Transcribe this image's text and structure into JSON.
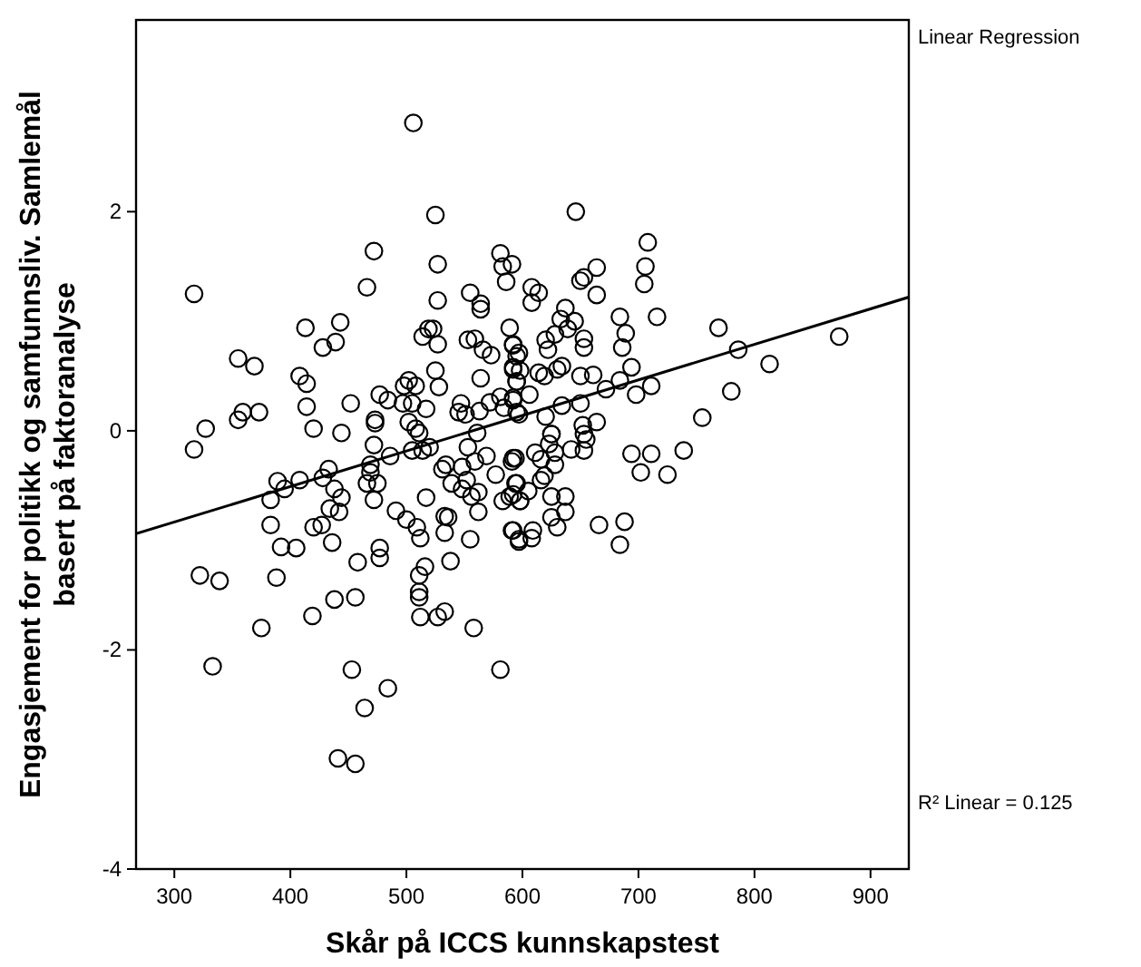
{
  "chart_data": {
    "type": "scatter",
    "xlabel": "Skår på ICCS kunnskapstest",
    "ylabel": "Engasjement for politikk og samfunnsliv.  Samlemål basert på faktoranalyse",
    "annotations": [
      "Linear Regression",
      "R² Linear = 0.125"
    ],
    "xlim": [
      267,
      933
    ],
    "ylim": [
      -4,
      3.75
    ],
    "xticks": [
      300,
      400,
      500,
      600,
      700,
      800,
      900
    ],
    "yticks": [
      -4,
      -2,
      0,
      2
    ],
    "grid": false,
    "series": [
      {
        "color": "#000000",
        "marker": "circle",
        "x": [
          506,
          525,
          472,
          527,
          317,
          466,
          527,
          581,
          583,
          591,
          586,
          555,
          564,
          564,
          413,
          443,
          439,
          428,
          519,
          523,
          514,
          527,
          553,
          559,
          566,
          573,
          589,
          592,
          597,
          355,
          369,
          408,
          414,
          525,
          528,
          564,
          592,
          595,
          502,
          508,
          498,
          477,
          484,
          452,
          414,
          497,
          505,
          517,
          547,
          545,
          551,
          563,
          572,
          581,
          584,
          597,
          592,
          355,
          359,
          373,
          327,
          420,
          444,
          473,
          473,
          502,
          508,
          511,
          561,
          317,
          646,
          708,
          706,
          705,
          664,
          653,
          650,
          664,
          608,
          614,
          608,
          637,
          633,
          645,
          639,
          628,
          620,
          622,
          653,
          653,
          684,
          689,
          686,
          716,
          592,
          595,
          592,
          598,
          614,
          619,
          630,
          634,
          595,
          650,
          661,
          684,
          672,
          694,
          698,
          711,
          606,
          592,
          595,
          620,
          634,
          650,
          664,
          652,
          653,
          625,
          769,
          786,
          813,
          780,
          873,
          755,
          383,
          389,
          395,
          408,
          383,
          392,
          405,
          388,
          322,
          339,
          375,
          333,
          433,
          428,
          438,
          444,
          434,
          442,
          420,
          427,
          436,
          458,
          438,
          456,
          419,
          469,
          469,
          466,
          475,
          472,
          486,
          472,
          491,
          500,
          509,
          512,
          477,
          477,
          516,
          511,
          538,
          555,
          511,
          511,
          512,
          527,
          533,
          558,
          453,
          484,
          464,
          441,
          456,
          581,
          505,
          514,
          520,
          517,
          531,
          534,
          539,
          533,
          536,
          533,
          548,
          552,
          548,
          559,
          556,
          562,
          562,
          569,
          577,
          583,
          553,
          591,
          594,
          595,
          591,
          597,
          598,
          589,
          592,
          594,
          592,
          598,
          605,
          592,
          597,
          608,
          609,
          611,
          616,
          628,
          628,
          619,
          616,
          625,
          637,
          637,
          625,
          630,
          623,
          625,
          642,
          653,
          655,
          694,
          711,
          739,
          702,
          725,
          666,
          688,
          684
        ],
        "values": [
          2.81,
          1.97,
          1.64,
          1.52,
          1.25,
          1.31,
          1.19,
          1.62,
          1.5,
          1.52,
          1.36,
          1.26,
          1.16,
          1.11,
          0.94,
          0.99,
          0.81,
          0.76,
          0.93,
          0.93,
          0.86,
          0.79,
          0.83,
          0.84,
          0.74,
          0.69,
          0.94,
          0.78,
          0.71,
          0.66,
          0.59,
          0.5,
          0.43,
          0.55,
          0.4,
          0.48,
          0.56,
          0.45,
          0.46,
          0.41,
          0.41,
          0.33,
          0.28,
          0.25,
          0.22,
          0.25,
          0.25,
          0.2,
          0.25,
          0.17,
          0.15,
          0.18,
          0.26,
          0.31,
          0.21,
          0.15,
          0.28,
          0.1,
          0.17,
          0.17,
          0.02,
          0.02,
          -0.02,
          0.1,
          0.07,
          0.08,
          0.02,
          -0.02,
          -0.02,
          -0.17,
          2.0,
          1.72,
          1.5,
          1.34,
          1.49,
          1.4,
          1.37,
          1.24,
          1.31,
          1.26,
          1.17,
          1.12,
          1.02,
          1.0,
          0.93,
          0.88,
          0.83,
          0.74,
          0.84,
          0.76,
          1.04,
          0.89,
          0.76,
          1.04,
          0.79,
          0.68,
          0.58,
          0.55,
          0.53,
          0.5,
          0.56,
          0.59,
          0.45,
          0.5,
          0.51,
          0.46,
          0.38,
          0.58,
          0.33,
          0.41,
          0.33,
          0.3,
          0.17,
          0.13,
          0.23,
          0.25,
          0.08,
          0.05,
          -0.03,
          -0.03,
          0.94,
          0.74,
          0.61,
          0.36,
          0.86,
          0.12,
          -0.63,
          -0.46,
          -0.53,
          -0.45,
          -0.86,
          -1.06,
          -1.07,
          -1.34,
          -1.32,
          -1.37,
          -1.8,
          -2.15,
          -0.35,
          -0.43,
          -0.53,
          -0.61,
          -0.71,
          -0.74,
          -0.88,
          -0.86,
          -1.02,
          -1.2,
          -1.54,
          -1.52,
          -1.69,
          -0.31,
          -0.38,
          -0.48,
          -0.48,
          -0.63,
          -0.23,
          -0.13,
          -0.73,
          -0.81,
          -0.88,
          -0.98,
          -1.07,
          -1.16,
          -1.24,
          -1.32,
          -1.19,
          -0.99,
          -1.47,
          -1.52,
          -1.7,
          -1.7,
          -1.65,
          -1.8,
          -2.18,
          -2.35,
          -2.53,
          -2.99,
          -3.04,
          -2.18,
          -0.18,
          -0.18,
          -0.15,
          -0.61,
          -0.35,
          -0.31,
          -0.48,
          -0.78,
          -0.79,
          -0.93,
          -0.33,
          -0.45,
          -0.53,
          -0.28,
          -0.6,
          -0.56,
          -0.74,
          -0.23,
          -0.4,
          -0.64,
          -0.15,
          -0.28,
          -0.25,
          -0.48,
          -0.91,
          -1.01,
          -0.64,
          -0.6,
          -0.25,
          -0.48,
          -0.58,
          -0.64,
          -0.55,
          -0.91,
          -0.99,
          -0.98,
          -0.91,
          -0.2,
          -0.26,
          -0.2,
          -0.31,
          -0.41,
          -0.45,
          -0.6,
          -0.6,
          -0.74,
          -0.79,
          -0.88,
          -0.12,
          -0.03,
          -0.17,
          -0.18,
          -0.08,
          -0.21,
          -0.21,
          -0.18,
          -0.38,
          -0.4,
          -0.86,
          -0.83,
          -1.04
        ]
      },
      {
        "type": "line",
        "color": "#000000",
        "line_style": "solid",
        "x": [
          267,
          933
        ],
        "values": [
          -0.94,
          1.22
        ]
      }
    ]
  }
}
